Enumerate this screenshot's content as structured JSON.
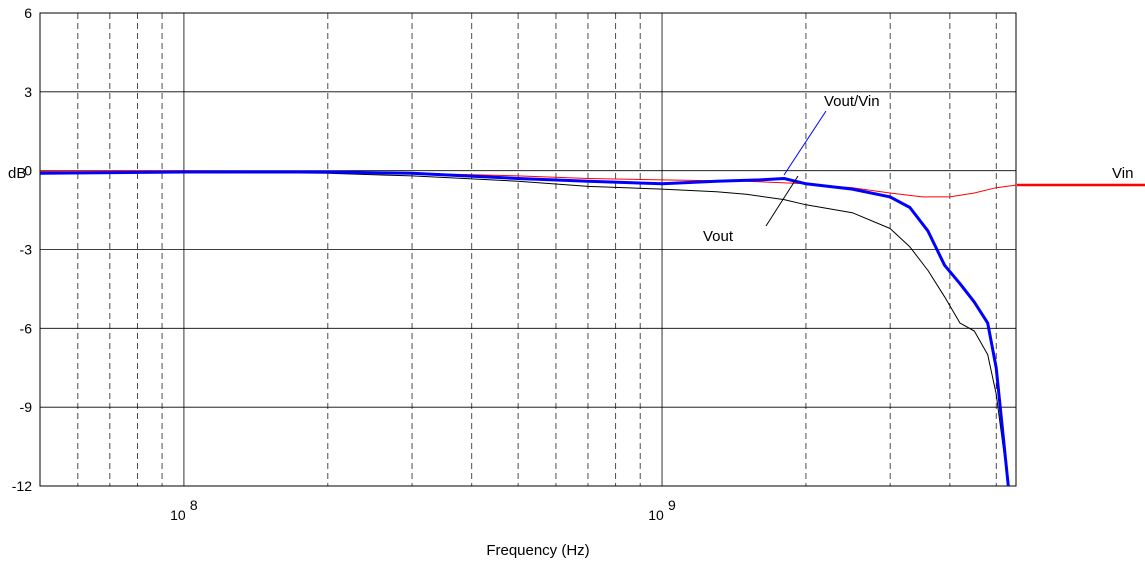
{
  "chart_data": {
    "type": "line",
    "title": "",
    "xlabel": "Frequency (Hz)",
    "ylabel": "dB",
    "x_scale": "log",
    "xlim": [
      50000000,
      5500000000
    ],
    "ylim": [
      -12,
      6
    ],
    "y_ticks": [
      6,
      3,
      0,
      -3,
      -6,
      -9,
      -12
    ],
    "x_tick_labels": [
      {
        "value": 100000000,
        "base": "10",
        "exp": "8"
      },
      {
        "value": 1000000000,
        "base": "10",
        "exp": "9"
      }
    ],
    "grid": "solid at decades and y-ticks, dashed at minor frequencies",
    "series": [
      {
        "name": "Vin",
        "color": "#ff0000",
        "x": [
          50000000,
          100000000,
          200000000,
          300000000,
          500000000,
          700000000,
          1000000000,
          1500000000,
          2000000000,
          2500000000,
          3000000000,
          3500000000,
          4000000000,
          4500000000,
          5000000000,
          5500000000
        ],
        "y": [
          0.0,
          0.0,
          -0.02,
          -0.1,
          -0.2,
          -0.3,
          -0.35,
          -0.4,
          -0.5,
          -0.65,
          -0.85,
          -1.0,
          -1.0,
          -0.85,
          -0.65,
          -0.55
        ]
      },
      {
        "name": "Vout",
        "color": "#000000",
        "x": [
          50000000,
          100000000,
          200000000,
          300000000,
          500000000,
          700000000,
          1000000000,
          1300000000,
          1500000000,
          1800000000,
          2000000000,
          2500000000,
          3000000000,
          3300000000,
          3600000000,
          3900000000,
          4200000000,
          4500000000,
          4800000000,
          5000000000,
          5300000000
        ],
        "y": [
          -0.05,
          -0.05,
          -0.1,
          -0.2,
          -0.4,
          -0.6,
          -0.7,
          -0.8,
          -0.9,
          -1.1,
          -1.3,
          -1.6,
          -2.2,
          -2.9,
          -3.8,
          -4.8,
          -5.8,
          -6.1,
          -7.0,
          -8.5,
          -12.0
        ]
      },
      {
        "name": "Vout/Vin",
        "color": "#0000ff",
        "x": [
          50000000,
          100000000,
          200000000,
          300000000,
          500000000,
          700000000,
          1000000000,
          1300000000,
          1600000000,
          1800000000,
          2000000000,
          2500000000,
          3000000000,
          3300000000,
          3600000000,
          3900000000,
          4200000000,
          4500000000,
          4800000000,
          5000000000,
          5300000000
        ],
        "y": [
          -0.1,
          -0.05,
          -0.05,
          -0.1,
          -0.3,
          -0.4,
          -0.5,
          -0.4,
          -0.35,
          -0.3,
          -0.5,
          -0.7,
          -1.0,
          -1.4,
          -2.3,
          -3.6,
          -4.3,
          -5.0,
          -5.8,
          -7.5,
          -12.0
        ]
      }
    ],
    "annotations": [
      {
        "text": "Vout/Vin",
        "series": "Vout/Vin"
      },
      {
        "text": "Vout",
        "series": "Vout"
      },
      {
        "text": "Vin",
        "series": "Vin"
      }
    ]
  }
}
